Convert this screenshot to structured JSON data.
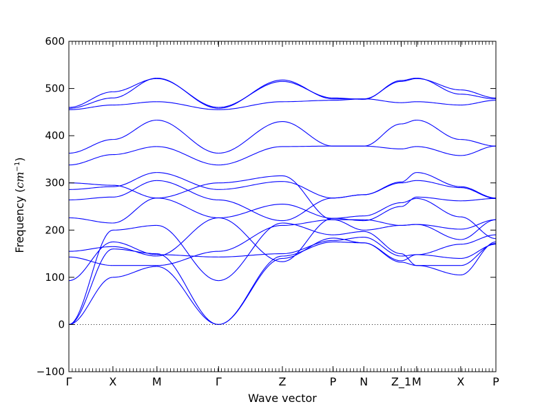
{
  "chart_data": {
    "type": "line",
    "title": "",
    "xlabel": "Wave vector",
    "ylabel_main": "Frequency (",
    "ylabel_unit": "cm",
    "ylabel_exp": "−1",
    "ylabel_close": ")",
    "ylim": [
      -100,
      600
    ],
    "yticks": [
      -100,
      0,
      100,
      200,
      300,
      400,
      500,
      600
    ],
    "grid": false,
    "legend": "none",
    "line_color": "#0000ff",
    "zero_line_color": "#000000",
    "kpoints": [
      {
        "label": "Γ",
        "x": 0
      },
      {
        "label": "X",
        "x": 1
      },
      {
        "label": "M",
        "x": 2
      },
      {
        "label": "Γ",
        "x": 3.4
      },
      {
        "label": "Z",
        "x": 4.85
      },
      {
        "label": "P",
        "x": 6.0
      },
      {
        "label": "N",
        "x": 6.7
      },
      {
        "label": "Z_1",
        "x": 7.55
      },
      {
        "label": "M",
        "x": 7.9
      },
      {
        "label": "X",
        "x": 8.9
      },
      {
        "label": "P",
        "x": 9.7
      }
    ],
    "segments": [
      {
        "x0": 0,
        "x1": 1,
        "bands": [
          [
            0,
            100
          ],
          [
            0,
            160
          ],
          [
            0,
            200
          ],
          [
            93,
            175
          ],
          [
            143,
            125
          ],
          [
            155,
            165
          ],
          [
            226,
            215
          ],
          [
            264,
            270
          ],
          [
            286,
            292
          ],
          [
            300,
            295
          ],
          [
            338,
            360
          ],
          [
            363,
            392
          ],
          [
            455,
            465
          ],
          [
            458,
            480
          ],
          [
            460,
            493
          ]
        ]
      },
      {
        "x0": 1,
        "x1": 2,
        "bands": [
          [
            100,
            123
          ],
          [
            160,
            150
          ],
          [
            200,
            210
          ],
          [
            175,
            148
          ],
          [
            125,
            125
          ],
          [
            165,
            145
          ],
          [
            215,
            268
          ],
          [
            270,
            305
          ],
          [
            292,
            322
          ],
          [
            295,
            268
          ],
          [
            360,
            377
          ],
          [
            392,
            433
          ],
          [
            465,
            472
          ],
          [
            480,
            522
          ],
          [
            493,
            521
          ]
        ]
      },
      {
        "x0": 2,
        "x1": 3.4,
        "bands": [
          [
            123,
            0
          ],
          [
            150,
            0
          ],
          [
            210,
            93
          ],
          [
            148,
            143
          ],
          [
            125,
            155
          ],
          [
            145,
            226
          ],
          [
            268,
            226
          ],
          [
            305,
            264
          ],
          [
            322,
            286
          ],
          [
            268,
            300
          ],
          [
            377,
            338
          ],
          [
            433,
            363
          ],
          [
            472,
            455
          ],
          [
            522,
            458
          ],
          [
            521,
            460
          ]
        ]
      },
      {
        "x0": 3.4,
        "x1": 4.85,
        "bands": [
          [
            0,
            140
          ],
          [
            0,
            145
          ],
          [
            93,
            215
          ],
          [
            143,
            150
          ],
          [
            155,
            210
          ],
          [
            226,
            133
          ],
          [
            226,
            255
          ],
          [
            264,
            220
          ],
          [
            286,
            303
          ],
          [
            300,
            315
          ],
          [
            338,
            377
          ],
          [
            363,
            430
          ],
          [
            455,
            472
          ],
          [
            458,
            518
          ],
          [
            460,
            515
          ]
        ]
      },
      {
        "x0": 4.85,
        "x1": 6.0,
        "bands": [
          [
            140,
            183
          ],
          [
            145,
            175
          ],
          [
            215,
            190
          ],
          [
            150,
            178
          ],
          [
            210,
            222
          ],
          [
            133,
            225
          ],
          [
            255,
            225
          ],
          [
            220,
            268
          ],
          [
            303,
            268
          ],
          [
            315,
            222
          ],
          [
            377,
            378
          ],
          [
            430,
            378
          ],
          [
            472,
            475
          ],
          [
            518,
            478
          ],
          [
            515,
            480
          ]
        ]
      },
      {
        "x0": 6.0,
        "x1": 6.7,
        "bands": [
          [
            183,
            173
          ],
          [
            175,
            173
          ],
          [
            190,
            197
          ],
          [
            178,
            185
          ],
          [
            222,
            222
          ],
          [
            225,
            230
          ],
          [
            225,
            220
          ],
          [
            268,
            275
          ],
          [
            268,
            275
          ],
          [
            222,
            200
          ],
          [
            378,
            378
          ],
          [
            378,
            378
          ],
          [
            475,
            478
          ],
          [
            478,
            478
          ],
          [
            480,
            477
          ]
        ]
      },
      {
        "x0": 6.7,
        "x1": 7.55,
        "bands": [
          [
            173,
            132
          ],
          [
            173,
            135
          ],
          [
            197,
            150
          ],
          [
            185,
            145
          ],
          [
            222,
            210
          ],
          [
            230,
            258
          ],
          [
            220,
            250
          ],
          [
            275,
            300
          ],
          [
            275,
            302
          ],
          [
            200,
            210
          ],
          [
            378,
            372
          ],
          [
            378,
            425
          ],
          [
            478,
            470
          ],
          [
            478,
            515
          ],
          [
            477,
            517
          ]
        ]
      },
      {
        "x0": 7.55,
        "x1": 7.9,
        "bands": [
          [
            132,
            125
          ],
          [
            135,
            148
          ],
          [
            150,
            125
          ],
          [
            145,
            148
          ],
          [
            210,
            212
          ],
          [
            258,
            267
          ],
          [
            250,
            270
          ],
          [
            300,
            305
          ],
          [
            302,
            322
          ],
          [
            210,
            212
          ],
          [
            372,
            377
          ],
          [
            425,
            433
          ],
          [
            470,
            472
          ],
          [
            515,
            521
          ],
          [
            517,
            522
          ]
        ]
      },
      {
        "x0": 7.9,
        "x1": 8.9,
        "bands": [
          [
            125,
            105
          ],
          [
            148,
            170
          ],
          [
            125,
            125
          ],
          [
            148,
            140
          ],
          [
            212,
            202
          ],
          [
            267,
            228
          ],
          [
            270,
            262
          ],
          [
            305,
            290
          ],
          [
            322,
            292
          ],
          [
            212,
            180
          ],
          [
            377,
            358
          ],
          [
            433,
            392
          ],
          [
            472,
            465
          ],
          [
            521,
            497
          ],
          [
            522,
            488
          ]
        ]
      },
      {
        "x0": 8.9,
        "x1": 9.7,
        "bands": [
          [
            105,
            175
          ],
          [
            170,
            190
          ],
          [
            125,
            172
          ],
          [
            140,
            170
          ],
          [
            202,
            222
          ],
          [
            228,
            182
          ],
          [
            262,
            267
          ],
          [
            290,
            267
          ],
          [
            292,
            268
          ],
          [
            180,
            222
          ],
          [
            358,
            378
          ],
          [
            392,
            378
          ],
          [
            465,
            475
          ],
          [
            497,
            480
          ],
          [
            488,
            478
          ]
        ]
      }
    ]
  }
}
